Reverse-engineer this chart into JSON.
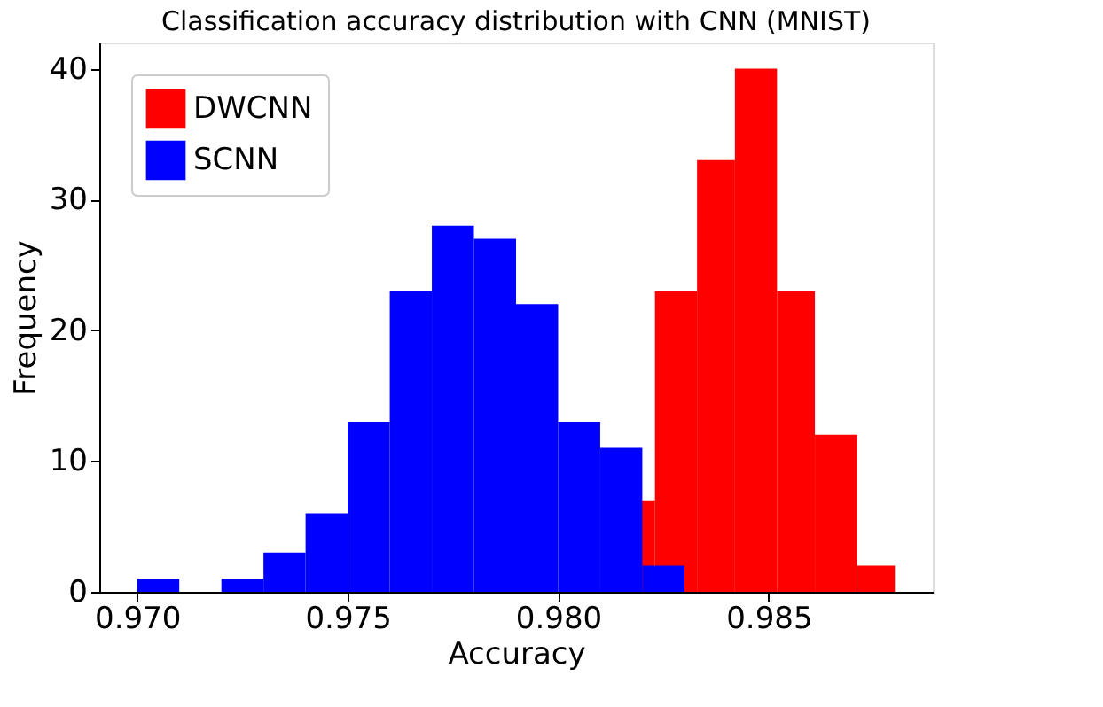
{
  "chart_data": {
    "type": "histogram",
    "title": "Classification accuracy distribution with CNN (MNIST)",
    "xlabel": "Accuracy",
    "ylabel": "Frequency",
    "series": [
      {
        "name": "DWCNN",
        "color": "#ff0000",
        "bins": [
          0.9814,
          0.9823,
          0.9833,
          0.9842,
          0.9852,
          0.9861,
          0.9871,
          0.988
        ],
        "values": [
          7,
          23,
          33,
          40,
          23,
          12,
          2
        ]
      },
      {
        "name": "SCNN",
        "color": "#0000ff",
        "values": [
          1,
          0,
          1,
          3,
          6,
          13,
          23,
          28,
          27,
          22,
          13,
          11,
          2
        ]
      }
    ],
    "bins": [
      0.97,
      0.971,
      0.972,
      0.973,
      0.974,
      0.975,
      0.976,
      0.977,
      0.978,
      0.979,
      0.98,
      0.981,
      0.982,
      0.983
    ],
    "xlim": [
      0.9691,
      0.9889
    ],
    "ylim": [
      0,
      42
    ],
    "xticks": [
      {
        "value": 0.97,
        "label": "0.970"
      },
      {
        "value": 0.975,
        "label": "0.975"
      },
      {
        "value": 0.98,
        "label": "0.980"
      },
      {
        "value": 0.985,
        "label": "0.985"
      }
    ],
    "yticks": [
      0,
      10,
      20,
      30,
      40
    ],
    "grid": false,
    "legend": "top left"
  }
}
